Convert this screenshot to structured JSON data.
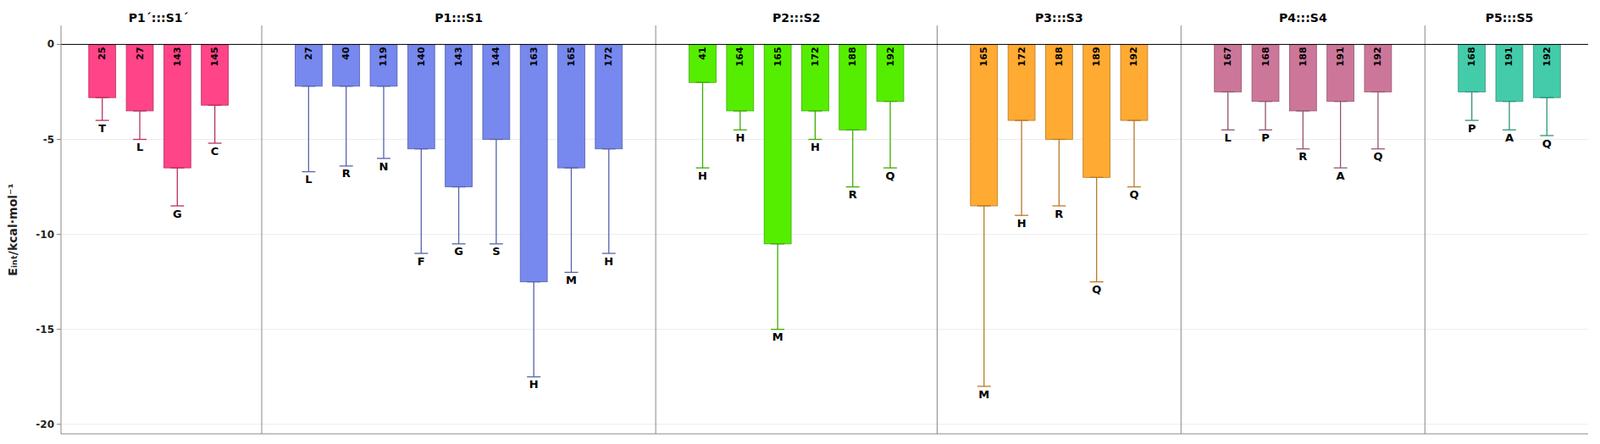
{
  "chart_data": {
    "type": "bar",
    "ylabel": "Eᵢₙₜ/kcal·mol⁻¹",
    "ylim": [
      -20.5,
      1.0
    ],
    "yticks": [
      0,
      -5,
      -10,
      -15,
      -20
    ],
    "groups": [
      {
        "title": "P1´:::S1´",
        "color": "#FF4488",
        "ids": [
          "25",
          "27",
          "143",
          "145"
        ],
        "labels": [
          "T",
          "L",
          "G",
          "C"
        ],
        "values": [
          -2.8,
          -3.5,
          -6.5,
          -3.2
        ],
        "err_lo": [
          1.2,
          1.5,
          2.0,
          2.0
        ]
      },
      {
        "title": "P1:::S1",
        "color": "#7788EE",
        "ids": [
          "27",
          "40",
          "119",
          "140",
          "143",
          "144",
          "163",
          "165",
          "172"
        ],
        "labels": [
          "L",
          "R",
          "N",
          "F",
          "G",
          "S",
          "H",
          "M",
          "H"
        ],
        "values": [
          -2.2,
          -2.2,
          -2.2,
          -5.5,
          -7.5,
          -5.0,
          -12.5,
          -6.5,
          -5.5
        ],
        "err_lo": [
          4.5,
          4.2,
          3.8,
          5.5,
          3.0,
          5.5,
          5.0,
          5.5,
          5.5
        ]
      },
      {
        "title": "P2:::S2",
        "color": "#55EE00",
        "ids": [
          "41",
          "164",
          "165",
          "172",
          "188",
          "192"
        ],
        "labels": [
          "H",
          "H",
          "M",
          "H",
          "R",
          "Q"
        ],
        "values": [
          -2.0,
          -3.5,
          -10.5,
          -3.5,
          -4.5,
          -3.0
        ],
        "err_lo": [
          4.5,
          1.0,
          4.5,
          1.5,
          3.0,
          3.5
        ]
      },
      {
        "title": "P3:::S3",
        "color": "#FFAA33",
        "ids": [
          "165",
          "172",
          "188",
          "189",
          "192"
        ],
        "labels": [
          "M",
          "H",
          "R",
          "Q",
          "Q"
        ],
        "values": [
          -8.5,
          -4.0,
          -5.0,
          -7.0,
          -4.0
        ],
        "err_lo": [
          9.5,
          5.0,
          3.5,
          5.5,
          3.5
        ]
      },
      {
        "title": "P4:::S4",
        "color": "#CC7799",
        "ids": [
          "167",
          "168",
          "188",
          "191",
          "192"
        ],
        "labels": [
          "L",
          "P",
          "R",
          "A",
          "Q"
        ],
        "values": [
          -2.5,
          -3.0,
          -3.5,
          -3.0,
          -2.5
        ],
        "err_lo": [
          2.0,
          1.5,
          2.0,
          3.5,
          3.0
        ]
      },
      {
        "title": "P5:::S5",
        "color": "#44CCAA",
        "ids": [
          "168",
          "191",
          "192"
        ],
        "labels": [
          "P",
          "A",
          "Q"
        ],
        "values": [
          -2.5,
          -3.0,
          -2.8
        ],
        "err_lo": [
          1.5,
          1.5,
          2.0
        ]
      }
    ]
  }
}
